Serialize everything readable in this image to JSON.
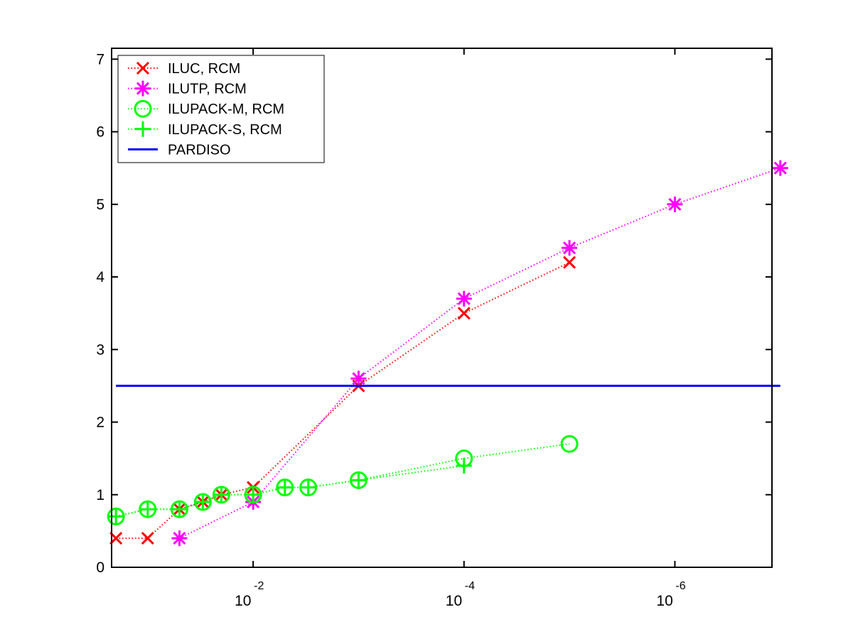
{
  "chart_data": {
    "type": "line",
    "title": "",
    "xlabel": "",
    "ylabel": "",
    "x_scale": "log",
    "x_direction": "decreasing",
    "xlim": [
      0.22,
      1.2e-07
    ],
    "ylim": [
      0,
      7.15
    ],
    "grid": false,
    "legend_position": "top-left",
    "x_ticks": [
      {
        "value": 0.01,
        "base": "10",
        "exponent": "-2"
      },
      {
        "value": 0.0001,
        "base": "10",
        "exponent": "-4"
      },
      {
        "value": 1e-06,
        "base": "10",
        "exponent": "-6"
      }
    ],
    "y_ticks": [
      "0",
      "1",
      "2",
      "3",
      "4",
      "5",
      "6",
      "7"
    ],
    "series": [
      {
        "name": "ILUC, RCM",
        "color": "#ff0000",
        "marker": "x",
        "line_style": "dotted",
        "x": [
          0.2,
          0.1,
          0.05,
          0.03,
          0.02,
          0.01,
          0.001,
          0.0001,
          1e-05
        ],
        "y": [
          0.4,
          0.4,
          0.8,
          0.9,
          1.0,
          1.1,
          2.5,
          3.5,
          4.2
        ]
      },
      {
        "name": "ILUTP, RCM",
        "color": "#ff00ff",
        "marker": "asterisk",
        "line_style": "dotted",
        "x": [
          0.05,
          0.01,
          0.001,
          0.0001,
          1e-05,
          1e-06,
          1e-07
        ],
        "y": [
          0.4,
          0.9,
          2.6,
          3.7,
          4.4,
          5.0,
          5.5
        ]
      },
      {
        "name": "ILUPACK-M, RCM",
        "color": "#00ff00",
        "marker": "circle",
        "line_style": "dotted",
        "x": [
          0.2,
          0.1,
          0.05,
          0.03,
          0.02,
          0.01,
          0.005,
          0.003,
          0.001,
          0.0001,
          1e-05
        ],
        "y": [
          0.7,
          0.8,
          0.8,
          0.9,
          1.0,
          1.0,
          1.1,
          1.1,
          1.2,
          1.5,
          1.7
        ]
      },
      {
        "name": "ILUPACK-S, RCM",
        "color": "#00ff00",
        "marker": "plus",
        "line_style": "dotted",
        "x": [
          0.2,
          0.1,
          0.05,
          0.03,
          0.02,
          0.01,
          0.005,
          0.003,
          0.001,
          0.0001
        ],
        "y": [
          0.7,
          0.8,
          0.8,
          0.9,
          1.0,
          1.0,
          1.1,
          1.1,
          1.2,
          1.4
        ]
      },
      {
        "name": "PARDISO",
        "color": "#0000ff",
        "marker": "none",
        "line_style": "solid",
        "x": [
          0.2,
          1e-07
        ],
        "y": [
          2.5,
          2.5
        ]
      }
    ]
  }
}
